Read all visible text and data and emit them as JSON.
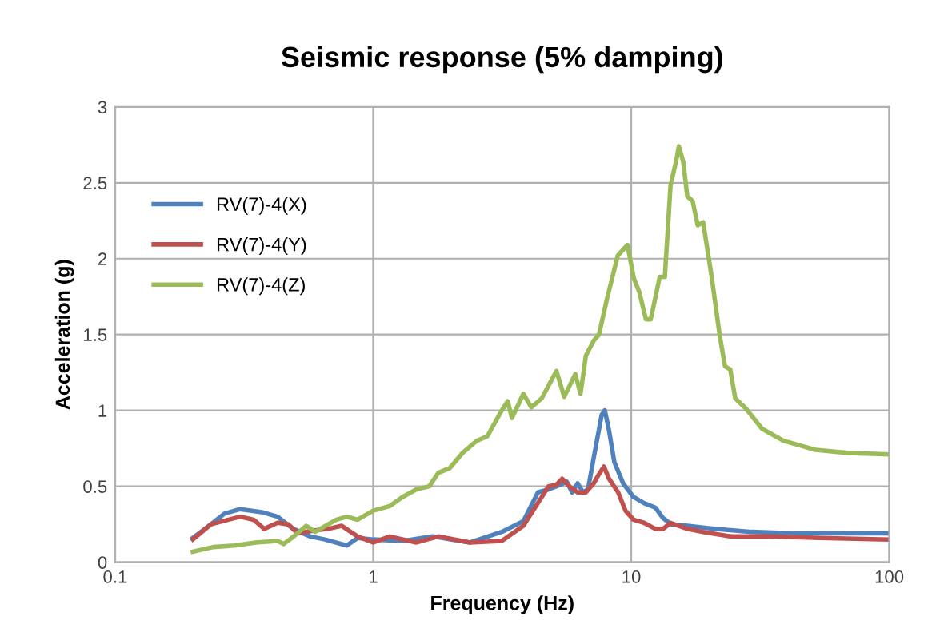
{
  "chart_data": {
    "type": "line",
    "title": "Seismic response (5% damping)",
    "xlabel": "Frequency (Hz)",
    "ylabel": "Acceleration (g)",
    "log": "x",
    "xlim": [
      0.1,
      100
    ],
    "xticks": [
      0.1,
      1,
      10,
      100
    ],
    "ylim": [
      0,
      3
    ],
    "yticks": [
      0,
      0.5,
      1,
      1.5,
      2,
      2.5,
      3
    ],
    "grid": true,
    "legend": "top left",
    "marker": "none",
    "line_style": "solid",
    "series": [
      {
        "name": "RV(7)-4(X)",
        "color": "#4f81bd",
        "x": [
          0.2,
          0.235,
          0.265,
          0.305,
          0.37,
          0.426,
          0.49,
          0.57,
          0.65,
          0.79,
          0.87,
          1.0,
          1.3,
          1.7,
          2.37,
          3.15,
          3.82,
          4.35,
          4.78,
          5.13,
          5.63,
          5.9,
          6.2,
          6.5,
          6.8,
          7.16,
          7.68,
          7.9,
          8.2,
          8.6,
          9.3,
          10.2,
          11.2,
          12.4,
          13.3,
          14.3,
          16.5,
          20.9,
          29.3,
          42.9,
          100
        ],
        "values": [
          0.16,
          0.25,
          0.32,
          0.35,
          0.33,
          0.3,
          0.22,
          0.17,
          0.15,
          0.11,
          0.16,
          0.15,
          0.14,
          0.17,
          0.13,
          0.2,
          0.27,
          0.46,
          0.48,
          0.5,
          0.53,
          0.46,
          0.52,
          0.46,
          0.48,
          0.69,
          0.97,
          1.0,
          0.87,
          0.66,
          0.52,
          0.43,
          0.39,
          0.36,
          0.29,
          0.25,
          0.24,
          0.22,
          0.2,
          0.19,
          0.19
        ]
      },
      {
        "name": "RV(7)-4(Y)",
        "color": "#c0504d",
        "x": [
          0.2,
          0.235,
          0.305,
          0.344,
          0.378,
          0.426,
          0.469,
          0.51,
          0.595,
          0.67,
          0.755,
          0.87,
          1.0,
          1.16,
          1.47,
          1.79,
          2.37,
          3.15,
          3.82,
          4.35,
          4.78,
          5.13,
          5.4,
          5.76,
          6.2,
          6.67,
          7.16,
          7.5,
          7.84,
          8.2,
          8.9,
          9.5,
          10.2,
          11.2,
          12.4,
          13.3,
          14.2,
          15.3,
          16.5,
          19,
          24.2,
          33.7,
          54,
          100
        ],
        "values": [
          0.15,
          0.25,
          0.3,
          0.28,
          0.22,
          0.26,
          0.25,
          0.19,
          0.21,
          0.22,
          0.24,
          0.17,
          0.13,
          0.17,
          0.13,
          0.17,
          0.13,
          0.14,
          0.24,
          0.39,
          0.5,
          0.51,
          0.55,
          0.5,
          0.46,
          0.46,
          0.52,
          0.58,
          0.63,
          0.55,
          0.46,
          0.34,
          0.28,
          0.26,
          0.22,
          0.22,
          0.26,
          0.24,
          0.22,
          0.2,
          0.17,
          0.17,
          0.16,
          0.15
        ]
      },
      {
        "name": "RV(7)-4(Z)",
        "color": "#9bbb59",
        "x": [
          0.2,
          0.24,
          0.29,
          0.35,
          0.426,
          0.45,
          0.5,
          0.55,
          0.595,
          0.67,
          0.72,
          0.79,
          0.87,
          1.0,
          1.16,
          1.3,
          1.47,
          1.65,
          1.79,
          1.98,
          2.22,
          2.52,
          2.77,
          3.15,
          3.32,
          3.45,
          3.82,
          4.1,
          4.5,
          5.13,
          5.5,
          6.07,
          6.36,
          6.67,
          7.16,
          7.5,
          8.07,
          8.87,
          9.31,
          9.67,
          10.24,
          10.75,
          11.4,
          11.9,
          12.9,
          13.5,
          14.2,
          15.0,
          15.3,
          15.9,
          16.5,
          17.3,
          18.1,
          19.0,
          20.5,
          22.0,
          23.1,
          24.2,
          25.3,
          27.9,
          32.1,
          38.9,
          51.8,
          69,
          100
        ],
        "values": [
          0.07,
          0.1,
          0.11,
          0.13,
          0.14,
          0.12,
          0.18,
          0.24,
          0.2,
          0.25,
          0.28,
          0.3,
          0.28,
          0.34,
          0.37,
          0.43,
          0.48,
          0.5,
          0.59,
          0.62,
          0.72,
          0.8,
          0.83,
          1.0,
          1.06,
          0.95,
          1.11,
          1.02,
          1.08,
          1.26,
          1.09,
          1.24,
          1.11,
          1.36,
          1.46,
          1.5,
          1.74,
          2.02,
          2.06,
          2.09,
          1.87,
          1.78,
          1.6,
          1.6,
          1.88,
          1.88,
          2.48,
          2.66,
          2.74,
          2.64,
          2.41,
          2.38,
          2.22,
          2.24,
          1.88,
          1.5,
          1.29,
          1.27,
          1.08,
          1.01,
          0.88,
          0.8,
          0.74,
          0.72,
          0.71
        ]
      }
    ]
  }
}
